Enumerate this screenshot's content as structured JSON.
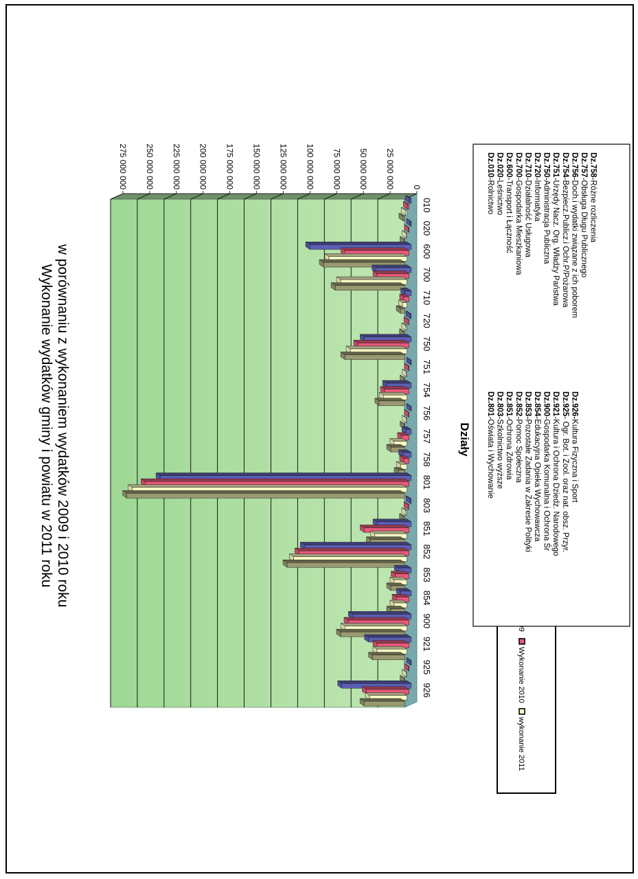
{
  "chart_data": {
    "type": "bar",
    "orientation": "rotated-90-clockwise",
    "title": "Wykonanie wydatków gminy i powiatu w 2011 roku",
    "subtitle": "w porównaniu z wykonaniem wydatków 2009 i 2010 roku",
    "xlabel": "Działy",
    "ylabel": "",
    "ylim": [
      0,
      275000000
    ],
    "y_ticks": [
      "0",
      "25 000 000",
      "50 000 000",
      "75 000 000",
      "100 000 000",
      "125 000 000",
      "150 000 000",
      "175 000 000",
      "200 000 000",
      "225 000 000",
      "250 000 000",
      "275 000 000"
    ],
    "grid": true,
    "legend_position": "left",
    "categories": [
      "010",
      "020",
      "600",
      "700",
      "710",
      "720",
      "750",
      "751",
      "754",
      "756",
      "757",
      "758",
      "801",
      "803",
      "851",
      "852",
      "853",
      "854",
      "900",
      "921",
      "925",
      "926"
    ],
    "series": [
      {
        "name": "Wykonanie 2009",
        "color": "#5a5fb4",
        "values": [
          1500000,
          500000,
          95000000,
          33000000,
          6000000,
          1000000,
          44000000,
          500000,
          23000000,
          500000,
          5000000,
          8000000,
          235000000,
          1000000,
          32000000,
          100000000,
          12000000,
          10000000,
          55000000,
          40000000,
          500000,
          65000000
        ]
      },
      {
        "name": "Wykonanie 2010",
        "color": "#e8587a",
        "values": [
          1500000,
          500000,
          60000000,
          30000000,
          5000000,
          1000000,
          48000000,
          500000,
          23000000,
          500000,
          7000000,
          5000000,
          247000000,
          1000000,
          42000000,
          103000000,
          13000000,
          12000000,
          57000000,
          30000000,
          500000,
          40000000
        ]
      },
      {
        "name": "Wykonanie 2011",
        "color": "#fbfbc4",
        "values": [
          1500000,
          500000,
          73000000,
          62000000,
          4000000,
          1000000,
          53000000,
          500000,
          22000000,
          500000,
          12000000,
          6000000,
          257000000,
          1000000,
          30000000,
          106000000,
          12000000,
          12000000,
          58000000,
          28000000,
          500000,
          35000000
        ]
      },
      {
        "name": "",
        "color": "#9a9a72",
        "values": [
          1500000,
          500000,
          76000000,
          65000000,
          4000000,
          1000000,
          56000000,
          500000,
          24000000,
          500000,
          13000000,
          6000000,
          260000000,
          1000000,
          32000000,
          110000000,
          13000000,
          13000000,
          60000000,
          30000000,
          500000,
          38000000
        ]
      }
    ],
    "legend_entries": [
      "Wykonanie 2009",
      "Wykonanie 2010",
      "wykonanie 2011"
    ],
    "legend_colors": [
      "#5a5fb4",
      "#e8587a",
      "#fbfbc4"
    ],
    "category_descriptions": [
      {
        "code": "Dz.010",
        "text": "-Rolnictwo"
      },
      {
        "code": "Dz.020",
        "text": "-Leśnictwo"
      },
      {
        "code": "Dz.600",
        "text": "-Transport i Łączność"
      },
      {
        "code": "Dz.700",
        "text": "-Gospodarka Mieszkaniowa"
      },
      {
        "code": "Dz.710",
        "text": "-Działalność Usługowa"
      },
      {
        "code": "Dz.720",
        "text": "-Informatyka"
      },
      {
        "code": "Dz.750",
        "text": "-Administracja Publiczna"
      },
      {
        "code": "Dz.751",
        "text": "-Urzędy Nacz. Org. Władzy Państwa"
      },
      {
        "code": "Dz.754",
        "text": "-Bezpiecz.Publicz.i Ochr.P/Pożarowa"
      },
      {
        "code": "Dz.756",
        "text": "-Doch.i wydatki związane z ich poborem"
      },
      {
        "code": "Dz.757",
        "text": "-Obsługa Długu Publicznego"
      },
      {
        "code": "Dz.758",
        "text": "-Różne rozliczenia"
      },
      {
        "code": "Dz.801",
        "text": "-Oświata i Wychowanie"
      },
      {
        "code": "Dz.803",
        "text": "-Szkolnictwo wyższe"
      },
      {
        "code": "Dz.851",
        "text": "-Ochrona Zdrowia"
      },
      {
        "code": "Dz.852",
        "text": "-Pomoc Społeczna"
      },
      {
        "code": "Dz.853",
        "text": "-Pozostałe Zadania w Zakresie Polityki"
      },
      {
        "code": "Dz.854",
        "text": "-Edukacyjna Opieka Wychowawcza"
      },
      {
        "code": "Dz.900",
        "text": "-Gospodarka Komunalna i Ochrona Śr"
      },
      {
        "code": "Dz.921",
        "text": "-Kultura i Ochrona Dziedz. Narodowego"
      },
      {
        "code": "Dz.925",
        "text": "- Ogr. Bot. i Zool. oraz nat. obsz. Przyr."
      },
      {
        "code": "Dz.926",
        "text": "-Kultura Fizyczna i Sport"
      }
    ]
  }
}
